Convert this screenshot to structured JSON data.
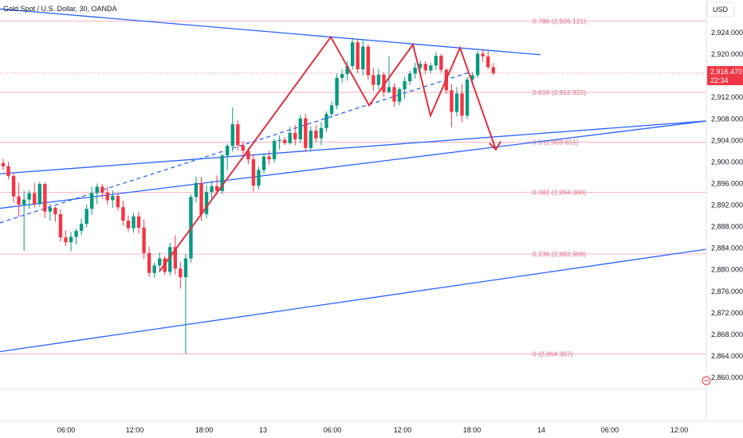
{
  "header": {
    "title": "Gold Spot / U.S. Dollar, 30, OANDA",
    "currency_button": "USD"
  },
  "price_tag": {
    "price": "2,916.470",
    "countdown": "22:34"
  },
  "colors": {
    "up": "#089981",
    "down": "#f23645",
    "trend": "#2962ff",
    "fib": "#f7a0b2",
    "path": "#e0303f",
    "grid": "#e0e3eb"
  },
  "chart_data": {
    "type": "candlestick",
    "title": "Gold Spot / U.S. Dollar, 30, OANDA",
    "y_ticks": [
      "2,924.000",
      "2,920.000",
      "2,916.000",
      "2,912.000",
      "2,908.000",
      "2,904.000",
      "2,900.000",
      "2,896.000",
      "2,892.000",
      "2,888.000",
      "2,884.000",
      "2,880.000",
      "2,876.000",
      "2,872.000",
      "2,868.000",
      "2,864.000",
      "2,860.000"
    ],
    "x_ticks": [
      "06:00",
      "12:00",
      "18:00",
      "13",
      "06:00",
      "12:00",
      "18:00",
      "14",
      "06:00",
      "12:00"
    ],
    "ylim": [
      2857.5,
      2928.5
    ],
    "fib_levels": [
      {
        "label": "0.786 (2,926.121)",
        "value": 2926.121
      },
      {
        "label": "0.618 (2,912.922)",
        "value": 2912.922
      },
      {
        "label": "0.5 (2,903.651)",
        "value": 2903.651
      },
      {
        "label": "0.382 (2,894.380)",
        "value": 2894.38
      },
      {
        "label": "0.236 (2,882.909)",
        "value": 2882.909
      },
      {
        "label": "0 (2,864.367)",
        "value": 2864.367
      }
    ],
    "candles": [
      [
        2899.8,
        2900.6,
        2898.5,
        2899.2
      ],
      [
        2899.2,
        2900.0,
        2896.8,
        2897.4
      ],
      [
        2897.4,
        2898.0,
        2892.5,
        2893.6
      ],
      [
        2893.6,
        2896.2,
        2889.8,
        2892.1
      ],
      [
        2892.1,
        2894.6,
        2883.5,
        2893.0
      ],
      [
        2893.0,
        2894.8,
        2891.3,
        2894.2
      ],
      [
        2894.2,
        2896.1,
        2891.5,
        2892.2
      ],
      [
        2892.2,
        2896.3,
        2891.7,
        2895.9
      ],
      [
        2895.9,
        2896.2,
        2889.6,
        2890.8
      ],
      [
        2890.8,
        2892.2,
        2889.1,
        2891.5
      ],
      [
        2891.5,
        2891.7,
        2888.9,
        2890.3
      ],
      [
        2890.3,
        2891.2,
        2885.2,
        2886.0
      ],
      [
        2886.0,
        2887.3,
        2884.4,
        2885.1
      ],
      [
        2885.1,
        2887.0,
        2883.4,
        2886.1
      ],
      [
        2886.1,
        2887.6,
        2884.7,
        2887.2
      ],
      [
        2887.2,
        2889.5,
        2886.4,
        2888.5
      ],
      [
        2888.5,
        2892.1,
        2887.9,
        2891.3
      ],
      [
        2891.3,
        2895.4,
        2890.2,
        2894.2
      ],
      [
        2894.2,
        2896.0,
        2892.2,
        2895.4
      ],
      [
        2895.4,
        2895.9,
        2893.2,
        2894.3
      ],
      [
        2894.3,
        2895.4,
        2892.1,
        2892.9
      ],
      [
        2892.9,
        2894.7,
        2891.5,
        2893.7
      ],
      [
        2893.7,
        2894.1,
        2891.0,
        2891.6
      ],
      [
        2891.6,
        2892.8,
        2888.2,
        2889.1
      ],
      [
        2889.1,
        2890.1,
        2887.1,
        2887.7
      ],
      [
        2887.7,
        2890.5,
        2886.9,
        2889.9
      ],
      [
        2889.9,
        2890.8,
        2886.7,
        2887.8
      ],
      [
        2887.8,
        2889.3,
        2882.0,
        2883.1
      ],
      [
        2883.1,
        2884.3,
        2878.7,
        2879.4
      ],
      [
        2879.4,
        2881.4,
        2878.5,
        2880.8
      ],
      [
        2880.8,
        2883.2,
        2879.5,
        2882.1
      ],
      [
        2882.1,
        2882.5,
        2879.0,
        2879.6
      ],
      [
        2879.6,
        2885.0,
        2878.9,
        2884.2
      ],
      [
        2884.2,
        2886.4,
        2879.1,
        2880.2
      ],
      [
        2880.2,
        2881.5,
        2876.5,
        2878.6
      ],
      [
        2878.6,
        2882.9,
        2864.4,
        2882.1
      ],
      [
        2882.1,
        2894.0,
        2881.3,
        2893.5
      ],
      [
        2893.5,
        2897.3,
        2892.5,
        2896.1
      ],
      [
        2896.1,
        2897.2,
        2889.1,
        2890.3
      ],
      [
        2890.3,
        2895.7,
        2889.6,
        2894.4
      ],
      [
        2894.4,
        2896.5,
        2893.2,
        2895.5
      ],
      [
        2895.5,
        2897.5,
        2893.9,
        2894.6
      ],
      [
        2894.6,
        2901.5,
        2894.0,
        2901.2
      ],
      [
        2901.2,
        2903.4,
        2898.4,
        2903.0
      ],
      [
        2903.0,
        2910.1,
        2901.9,
        2907.0
      ],
      [
        2907.0,
        2907.7,
        2902.1,
        2903.1
      ],
      [
        2903.1,
        2903.8,
        2901.3,
        2902.1
      ],
      [
        2902.1,
        2902.6,
        2899.6,
        2900.5
      ],
      [
        2900.5,
        2901.4,
        2894.5,
        2895.6
      ],
      [
        2895.6,
        2899.1,
        2894.9,
        2898.5
      ],
      [
        2898.5,
        2901.6,
        2897.8,
        2901.0
      ],
      [
        2901.0,
        2902.1,
        2899.5,
        2900.5
      ],
      [
        2900.5,
        2904.3,
        2899.9,
        2903.9
      ],
      [
        2903.9,
        2904.9,
        2902.3,
        2904.1
      ],
      [
        2904.1,
        2904.6,
        2903.1,
        2903.5
      ],
      [
        2903.5,
        2906.5,
        2903.2,
        2905.4
      ],
      [
        2905.4,
        2906.9,
        2903.1,
        2904.2
      ],
      [
        2904.2,
        2908.8,
        2903.5,
        2908.1
      ],
      [
        2908.1,
        2908.9,
        2901.8,
        2902.6
      ],
      [
        2902.6,
        2906.6,
        2901.9,
        2905.8
      ],
      [
        2905.8,
        2906.8,
        2903.6,
        2904.4
      ],
      [
        2904.4,
        2907.4,
        2903.1,
        2906.3
      ],
      [
        2906.3,
        2909.4,
        2905.6,
        2908.9
      ],
      [
        2908.9,
        2911.2,
        2908.1,
        2910.5
      ],
      [
        2910.5,
        2916.4,
        2909.8,
        2915.6
      ],
      [
        2915.6,
        2917.2,
        2914.7,
        2916.3
      ],
      [
        2916.3,
        2918.7,
        2915.1,
        2917.8
      ],
      [
        2917.8,
        2923.0,
        2917.1,
        2922.2
      ],
      [
        2922.2,
        2922.9,
        2916.5,
        2917.2
      ],
      [
        2917.2,
        2922.8,
        2916.0,
        2921.4
      ],
      [
        2921.4,
        2921.8,
        2915.3,
        2916.1
      ],
      [
        2916.1,
        2917.5,
        2913.2,
        2914.3
      ],
      [
        2914.3,
        2917.3,
        2913.5,
        2916.2
      ],
      [
        2916.2,
        2916.6,
        2912.1,
        2913.0
      ],
      [
        2913.0,
        2919.6,
        2912.7,
        2913.9
      ],
      [
        2913.9,
        2914.5,
        2910.3,
        2911.2
      ],
      [
        2911.2,
        2913.9,
        2910.5,
        2913.5
      ],
      [
        2913.5,
        2915.8,
        2911.7,
        2915.0
      ],
      [
        2915.0,
        2916.9,
        2914.3,
        2916.4
      ],
      [
        2916.4,
        2918.4,
        2915.5,
        2917.5
      ],
      [
        2917.5,
        2918.8,
        2916.4,
        2918.2
      ],
      [
        2918.2,
        2918.7,
        2916.3,
        2917.0
      ],
      [
        2917.0,
        2918.4,
        2916.5,
        2917.9
      ],
      [
        2917.9,
        2920.4,
        2917.1,
        2919.7
      ],
      [
        2919.7,
        2920.0,
        2916.6,
        2917.1
      ],
      [
        2917.1,
        2917.4,
        2912.6,
        2913.3
      ],
      [
        2913.3,
        2914.5,
        2906.4,
        2909.3
      ],
      [
        2909.3,
        2913.9,
        2908.5,
        2912.7
      ],
      [
        2912.7,
        2914.4,
        2907.4,
        2908.6
      ],
      [
        2908.6,
        2915.8,
        2908.0,
        2915.3
      ],
      [
        2915.3,
        2916.7,
        2914.4,
        2916.1
      ],
      [
        2916.1,
        2920.6,
        2915.6,
        2920.1
      ],
      [
        2920.1,
        2920.8,
        2918.6,
        2919.6
      ],
      [
        2919.6,
        2920.6,
        2917.2,
        2917.6
      ],
      [
        2917.6,
        2918.3,
        2916.1,
        2916.5
      ]
    ]
  }
}
